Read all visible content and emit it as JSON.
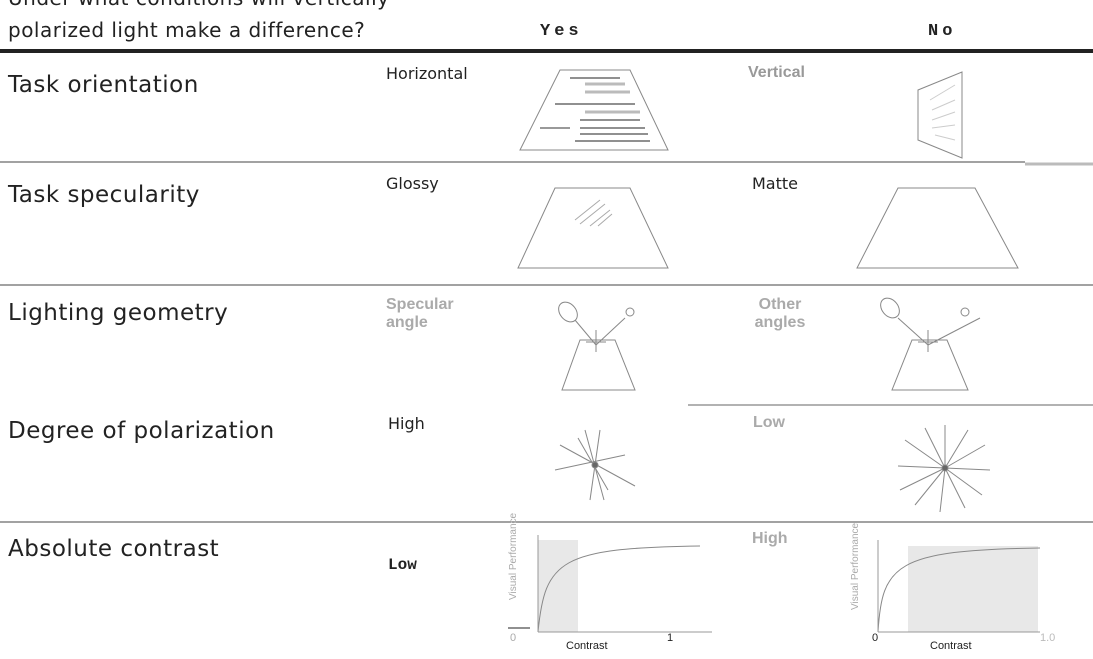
{
  "header": {
    "question_lines": [
      "Under what conditions will vertically",
      "polarized light make a difference?"
    ],
    "yes": "Yes",
    "no": "No"
  },
  "rows": [
    {
      "label": "Task orientation",
      "yes": "Horizontal",
      "no": "Vertical"
    },
    {
      "label": "Task specularity",
      "yes": "Glossy",
      "no": "Matte"
    },
    {
      "label": "Lighting geometry",
      "yes": "Specular angle",
      "no": "Other angles"
    },
    {
      "label": "Degree of polarization",
      "yes": "High",
      "no": "Low"
    },
    {
      "label": "Absolute contrast",
      "yes": "Low",
      "no": "High"
    }
  ],
  "graphs": [
    {
      "y_label": "Visual Performance",
      "x_label": "Contrast",
      "x_start": "0",
      "x_end": "1"
    },
    {
      "y_label": "Visual Performance",
      "x_label": "Contrast",
      "x_start": "0",
      "x_end": "1.0"
    }
  ]
}
